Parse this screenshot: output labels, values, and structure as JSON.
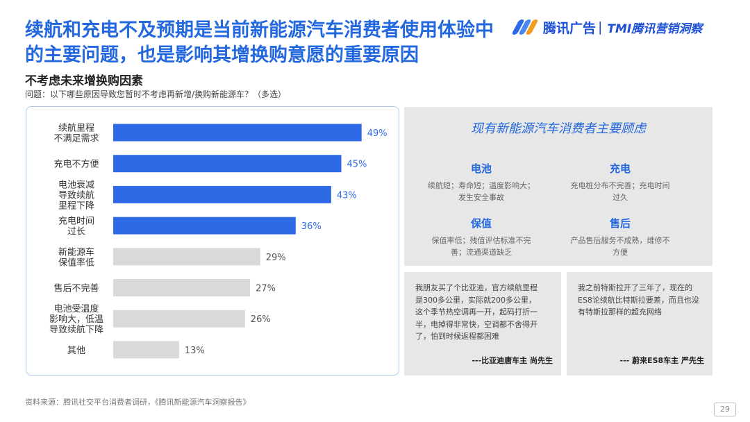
{
  "header": {
    "title_line1": "续航和充电不及预期是当前新能源汽车消费者使用体验中",
    "title_line2": "的主要问题，也是影响其增换购意愿的重要原因"
  },
  "logo": {
    "brand": "腾讯广告",
    "separator": "|",
    "sub_brand": "TMI腾讯营销洞察"
  },
  "section": {
    "subtitle": "不考虑未来增换购因素",
    "question": "问题：以下哪些原因导致您暂时不考虑再新增/换购新能源车？（多选）"
  },
  "chart_data": {
    "type": "bar",
    "orientation": "horizontal",
    "categories": [
      [
        "续航里程",
        "不满足需求"
      ],
      [
        "充电不方便"
      ],
      [
        "电池衰减",
        "导致续航",
        "里程下降"
      ],
      [
        "充电时间",
        "过长"
      ],
      [
        "新能源车",
        "保值率低"
      ],
      [
        "售后不完善"
      ],
      [
        "电池受温度",
        "影响大，低温",
        "导致续航下降"
      ],
      [
        "其他"
      ]
    ],
    "values": [
      49,
      45,
      43,
      36,
      29,
      27,
      26,
      13
    ],
    "value_labels": [
      "49%",
      "45%",
      "43%",
      "36%",
      "29%",
      "27%",
      "26%",
      "13%"
    ],
    "highlighted": [
      true,
      true,
      true,
      true,
      false,
      false,
      false,
      false
    ],
    "colors": {
      "highlight": "#2f6ae6",
      "normal": "#d9d9d9",
      "highlight_label": "#2f6ae6",
      "normal_label": "#555555"
    },
    "xlim": [
      0,
      55
    ],
    "grid": false
  },
  "concerns": {
    "title": "现有新能源汽车消费者主要顾虑",
    "items": [
      {
        "head": "电池",
        "body_lines": [
          "续航短；寿命短；温度影响大；",
          "发生安全事故"
        ]
      },
      {
        "head": "充电",
        "body_lines": [
          "充电桩分布不完善；充电时间",
          "过久"
        ]
      },
      {
        "head": "保值",
        "body_lines": [
          "保值率低；残值评估标准不完",
          "善；流通渠道缺乏"
        ]
      },
      {
        "head": "售后",
        "body_lines": [
          "产品售后服务不成熟，维修不",
          "方便"
        ]
      }
    ]
  },
  "quotes": [
    {
      "lines": [
        "我朋友买了个比亚迪，官方续航里程",
        "是300多公里，实际就200多公里，",
        "这个季节热空调再一开，起码打折一",
        "半，电掉得非常快，空调都不舍得开",
        "了，怕到时候返程都困难"
      ],
      "signature": "---比亚迪唐车主 尚先生"
    },
    {
      "lines": [
        "我之前特斯拉开了三年了，现在的",
        "ES8论续航比特斯拉要差，而且也没",
        "有特斯拉那样的超充网络"
      ],
      "signature": "--- 蔚来ES8车主 严先生"
    }
  ],
  "footer": {
    "source": "资料来源：腾讯社交平台消费者调研，《腾讯新能源汽车洞察报告》",
    "page": "29"
  }
}
